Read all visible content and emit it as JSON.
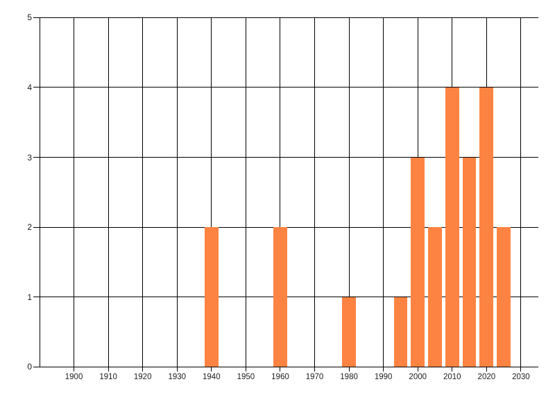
{
  "chart": {
    "background_color": "#ffffff",
    "bar_color": "#fd8342",
    "grid_color": "#000000",
    "text_color": "#1c1c1c"
  },
  "chart_data": {
    "type": "bar",
    "title": "",
    "xlabel": "",
    "ylabel": "",
    "x": [
      1940,
      1960,
      1980,
      1995,
      2000,
      2005,
      2010,
      2015,
      2020,
      2025
    ],
    "values": [
      2,
      2,
      1,
      1,
      3,
      2,
      4,
      3,
      4,
      2
    ],
    "bin_width_years": 5,
    "bar_width_years": 4,
    "xlim": [
      1890,
      2035
    ],
    "ylim": [
      0,
      5
    ],
    "x_gridlines": [
      1890,
      1900,
      1910,
      1920,
      1930,
      1940,
      1950,
      1960,
      1970,
      1980,
      1990,
      2000,
      2010,
      2020,
      2030
    ],
    "x_tick_labels": [
      "1900",
      "1910",
      "1920",
      "1930",
      "1940",
      "1950",
      "1960",
      "1970",
      "1980",
      "1990",
      "2000",
      "2010",
      "2020",
      "2030"
    ],
    "y_tick_labels": [
      "0",
      "1",
      "2",
      "3",
      "4",
      "5"
    ],
    "grid": "on",
    "legend": "none"
  }
}
